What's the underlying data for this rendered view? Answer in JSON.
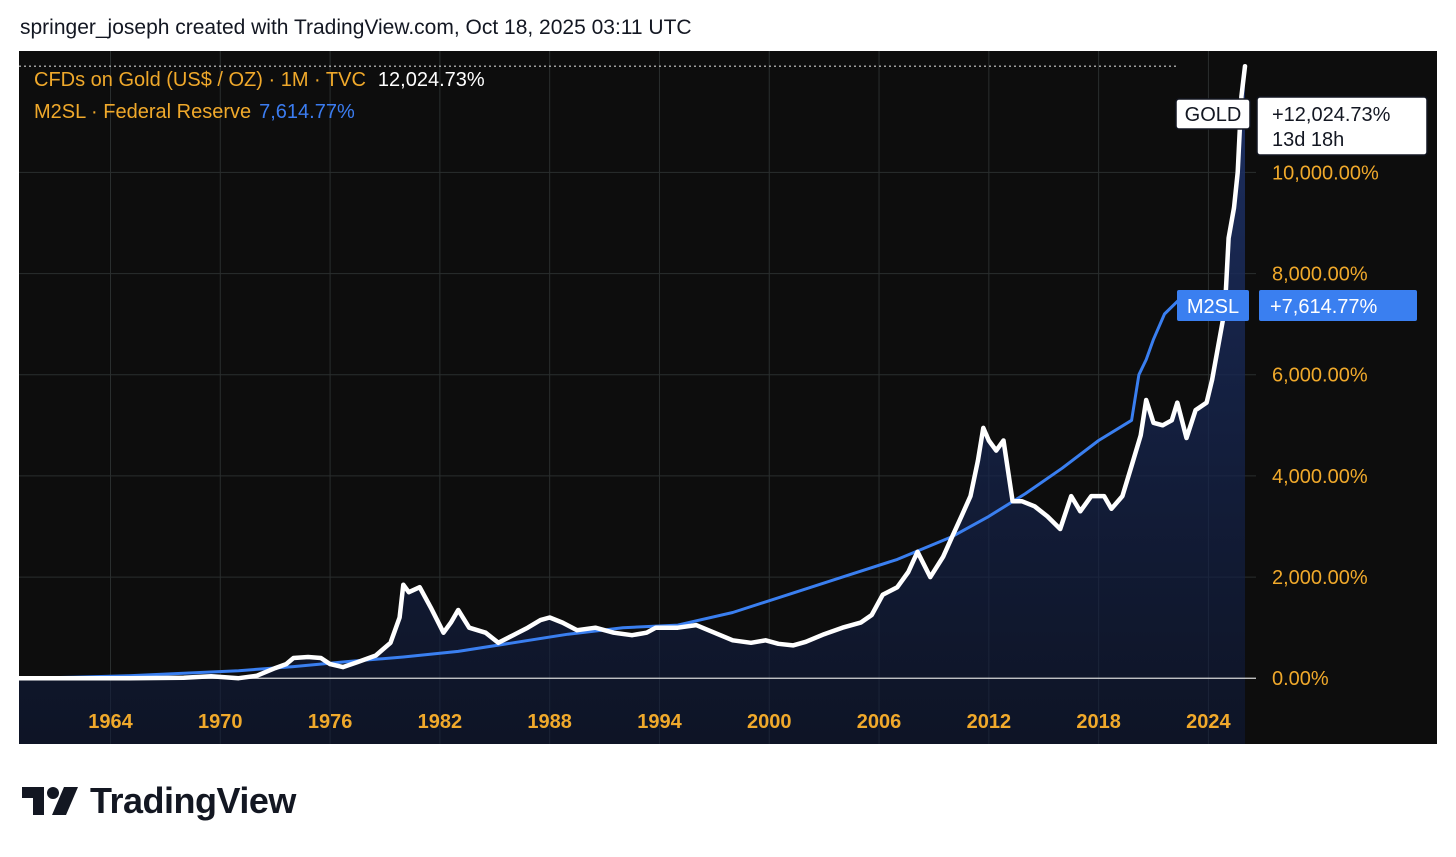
{
  "header": {
    "attribution": "springer_joseph created with TradingView.com, Oct 18, 2025 03:11 UTC"
  },
  "legend": {
    "gold": {
      "label": "CFDs on Gold (US$ / OZ) · 1M · TVC",
      "value": "12,024.73%"
    },
    "m2": {
      "label": "M2SL · Federal Reserve",
      "value": "7,614.77%"
    }
  },
  "price_tags": {
    "gold": {
      "symbol": "GOLD",
      "value": "+12,024.73%",
      "countdown": "13d 18h"
    },
    "m2": {
      "symbol": "M2SL",
      "value": "+7,614.77%"
    }
  },
  "brand": {
    "name": "TradingView"
  },
  "colors": {
    "background": "#0d0d0d",
    "gold_line": "#ffffff",
    "m2_line": "#3a7ff0",
    "axis_text": "#f0a92b",
    "grid": "#2a2e2e"
  },
  "chart_data": {
    "type": "line",
    "title": "CFDs on Gold (US$ / OZ) · 1M · TVC",
    "xlabel": "",
    "ylabel": "",
    "y_unit": "%",
    "x_ticks": [
      "1964",
      "1970",
      "1976",
      "1982",
      "1988",
      "1994",
      "2000",
      "2006",
      "2012",
      "2018",
      "2024"
    ],
    "y_ticks": [
      "0.00%",
      "2,000.00%",
      "4,000.00%",
      "6,000.00%",
      "8,000.00%",
      "10,000.00%"
    ],
    "xlim": [
      1959,
      2026.6
    ],
    "ylim": [
      -1300,
      12400
    ],
    "grid": true,
    "series": [
      {
        "name": "CFDs on Gold (US$ / OZ)",
        "color": "#ffffff",
        "area_fill": true,
        "points": [
          [
            1959.0,
            0
          ],
          [
            1965.0,
            0
          ],
          [
            1968.0,
            10
          ],
          [
            1969.5,
            40
          ],
          [
            1971.0,
            0
          ],
          [
            1972.0,
            50
          ],
          [
            1973.0,
            200
          ],
          [
            1973.6,
            280
          ],
          [
            1974.0,
            400
          ],
          [
            1974.8,
            420
          ],
          [
            1975.5,
            400
          ],
          [
            1976.0,
            280
          ],
          [
            1976.7,
            220
          ],
          [
            1977.5,
            320
          ],
          [
            1978.5,
            450
          ],
          [
            1979.3,
            700
          ],
          [
            1979.8,
            1200
          ],
          [
            1980.0,
            1850
          ],
          [
            1980.3,
            1700
          ],
          [
            1980.9,
            1800
          ],
          [
            1981.5,
            1400
          ],
          [
            1982.2,
            900
          ],
          [
            1982.6,
            1100
          ],
          [
            1983.0,
            1350
          ],
          [
            1983.6,
            1000
          ],
          [
            1984.5,
            900
          ],
          [
            1985.2,
            700
          ],
          [
            1986.0,
            850
          ],
          [
            1986.8,
            1000
          ],
          [
            1987.5,
            1150
          ],
          [
            1988.0,
            1200
          ],
          [
            1988.7,
            1100
          ],
          [
            1989.5,
            950
          ],
          [
            1990.5,
            1000
          ],
          [
            1991.5,
            900
          ],
          [
            1992.5,
            850
          ],
          [
            1993.3,
            900
          ],
          [
            1993.8,
            1000
          ],
          [
            1995.0,
            1000
          ],
          [
            1996.0,
            1050
          ],
          [
            1997.0,
            900
          ],
          [
            1998.0,
            750
          ],
          [
            1999.0,
            700
          ],
          [
            1999.8,
            750
          ],
          [
            2000.5,
            680
          ],
          [
            2001.3,
            650
          ],
          [
            2002.0,
            720
          ],
          [
            2003.0,
            870
          ],
          [
            2004.0,
            1000
          ],
          [
            2005.0,
            1100
          ],
          [
            2005.6,
            1250
          ],
          [
            2006.2,
            1650
          ],
          [
            2007.0,
            1800
          ],
          [
            2007.6,
            2100
          ],
          [
            2008.1,
            2500
          ],
          [
            2008.8,
            2000
          ],
          [
            2009.5,
            2400
          ],
          [
            2010.0,
            2800
          ],
          [
            2010.5,
            3200
          ],
          [
            2011.0,
            3600
          ],
          [
            2011.4,
            4300
          ],
          [
            2011.7,
            4950
          ],
          [
            2012.0,
            4700
          ],
          [
            2012.4,
            4500
          ],
          [
            2012.8,
            4700
          ],
          [
            2013.3,
            3500
          ],
          [
            2013.8,
            3500
          ],
          [
            2014.5,
            3400
          ],
          [
            2015.2,
            3200
          ],
          [
            2015.9,
            2950
          ],
          [
            2016.5,
            3600
          ],
          [
            2017.0,
            3300
          ],
          [
            2017.6,
            3600
          ],
          [
            2018.3,
            3600
          ],
          [
            2018.7,
            3350
          ],
          [
            2019.3,
            3600
          ],
          [
            2019.8,
            4200
          ],
          [
            2020.3,
            4800
          ],
          [
            2020.6,
            5500
          ],
          [
            2021.0,
            5050
          ],
          [
            2021.5,
            5000
          ],
          [
            2022.0,
            5100
          ],
          [
            2022.3,
            5450
          ],
          [
            2022.8,
            4750
          ],
          [
            2023.3,
            5300
          ],
          [
            2023.9,
            5450
          ],
          [
            2024.2,
            5900
          ],
          [
            2024.5,
            6500
          ],
          [
            2024.9,
            7300
          ],
          [
            2025.1,
            8700
          ],
          [
            2025.4,
            9300
          ],
          [
            2025.6,
            10000
          ],
          [
            2025.8,
            11500
          ],
          [
            2026.0,
            12100
          ]
        ]
      },
      {
        "name": "M2SL · Federal Reserve",
        "color": "#3a7ff0",
        "points": [
          [
            1959.0,
            0
          ],
          [
            1962.0,
            20
          ],
          [
            1965.0,
            50
          ],
          [
            1968.0,
            100
          ],
          [
            1971.0,
            150
          ],
          [
            1974.0,
            230
          ],
          [
            1977.0,
            330
          ],
          [
            1980.0,
            420
          ],
          [
            1983.0,
            530
          ],
          [
            1986.0,
            700
          ],
          [
            1989.0,
            870
          ],
          [
            1992.0,
            1000
          ],
          [
            1995.0,
            1050
          ],
          [
            1998.0,
            1300
          ],
          [
            2001.0,
            1650
          ],
          [
            2004.0,
            2000
          ],
          [
            2007.0,
            2350
          ],
          [
            2010.0,
            2800
          ],
          [
            2012.0,
            3200
          ],
          [
            2014.0,
            3650
          ],
          [
            2016.0,
            4150
          ],
          [
            2018.0,
            4700
          ],
          [
            2019.8,
            5100
          ],
          [
            2020.2,
            6000
          ],
          [
            2020.6,
            6300
          ],
          [
            2021.0,
            6700
          ],
          [
            2021.6,
            7200
          ],
          [
            2022.3,
            7450
          ],
          [
            2023.2,
            7100
          ],
          [
            2024.2,
            7150
          ],
          [
            2025.0,
            7450
          ],
          [
            2026.0,
            7620
          ]
        ]
      }
    ]
  }
}
